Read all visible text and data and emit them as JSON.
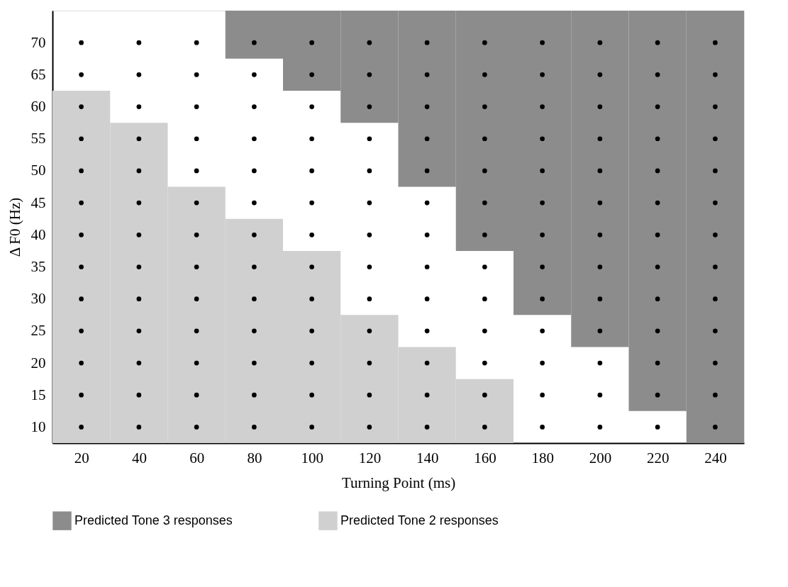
{
  "chart_data": {
    "type": "bar",
    "xlabel": "Turning Point (ms)",
    "ylabel": "Δ F0 (Hz)",
    "xlim": [
      10,
      250
    ],
    "ylim": [
      7.5,
      75
    ],
    "xticks": [
      20,
      40,
      60,
      80,
      100,
      120,
      140,
      160,
      180,
      200,
      220,
      240
    ],
    "yticks": [
      10,
      15,
      20,
      25,
      30,
      35,
      40,
      45,
      50,
      55,
      60,
      65,
      70
    ],
    "grid": false,
    "legend": "bottom",
    "series": [
      {
        "name": "Predicted Tone 3 responses",
        "color": "#8c8c8c",
        "x": [
          80,
          100,
          120,
          140,
          160,
          180,
          200,
          220,
          240
        ],
        "base": [
          67.5,
          62.5,
          57.5,
          47.5,
          37.5,
          27.5,
          22.5,
          12.5,
          7.5
        ],
        "values": [
          7.5,
          12.5,
          17.5,
          27.5,
          37.5,
          47.5,
          52.5,
          62.5,
          67.5
        ]
      },
      {
        "name": "Predicted Tone 2 responses",
        "color": "#d0d0d0",
        "x": [
          20,
          40,
          60,
          80,
          100,
          120,
          140,
          160
        ],
        "base": [
          7.5,
          7.5,
          7.5,
          7.5,
          7.5,
          7.5,
          7.5,
          7.5
        ],
        "values": [
          55,
          50,
          40,
          35,
          30,
          20,
          15,
          10
        ]
      },
      {
        "type": "scatter",
        "color": "#000000",
        "marker": "circle",
        "x": [
          20,
          20,
          20,
          20,
          20,
          20,
          20,
          20,
          20,
          20,
          20,
          20,
          20,
          40,
          40,
          40,
          40,
          40,
          40,
          40,
          40,
          40,
          40,
          40,
          40,
          40,
          60,
          60,
          60,
          60,
          60,
          60,
          60,
          60,
          60,
          60,
          60,
          60,
          60,
          80,
          80,
          80,
          80,
          80,
          80,
          80,
          80,
          80,
          80,
          80,
          80,
          80,
          100,
          100,
          100,
          100,
          100,
          100,
          100,
          100,
          100,
          100,
          100,
          100,
          100,
          120,
          120,
          120,
          120,
          120,
          120,
          120,
          120,
          120,
          120,
          120,
          120,
          120,
          140,
          140,
          140,
          140,
          140,
          140,
          140,
          140,
          140,
          140,
          140,
          140,
          140,
          160,
          160,
          160,
          160,
          160,
          160,
          160,
          160,
          160,
          160,
          160,
          160,
          160,
          180,
          180,
          180,
          180,
          180,
          180,
          180,
          180,
          180,
          180,
          180,
          180,
          180,
          200,
          200,
          200,
          200,
          200,
          200,
          200,
          200,
          200,
          200,
          200,
          200,
          200,
          220,
          220,
          220,
          220,
          220,
          220,
          220,
          220,
          220,
          220,
          220,
          220,
          220,
          240,
          240,
          240,
          240,
          240,
          240,
          240,
          240,
          240,
          240,
          240,
          240,
          240
        ],
        "values": [
          10,
          15,
          20,
          25,
          30,
          35,
          40,
          45,
          50,
          55,
          60,
          65,
          70,
          10,
          15,
          20,
          25,
          30,
          35,
          40,
          45,
          50,
          55,
          60,
          65,
          70,
          10,
          15,
          20,
          25,
          30,
          35,
          40,
          45,
          50,
          55,
          60,
          65,
          70,
          10,
          15,
          20,
          25,
          30,
          35,
          40,
          45,
          50,
          55,
          60,
          65,
          70,
          10,
          15,
          20,
          25,
          30,
          35,
          40,
          45,
          50,
          55,
          60,
          65,
          70,
          10,
          15,
          20,
          25,
          30,
          35,
          40,
          45,
          50,
          55,
          60,
          65,
          70,
          10,
          15,
          20,
          25,
          30,
          35,
          40,
          45,
          50,
          55,
          60,
          65,
          70,
          10,
          15,
          20,
          25,
          30,
          35,
          40,
          45,
          50,
          55,
          60,
          65,
          70,
          10,
          15,
          20,
          25,
          30,
          35,
          40,
          45,
          50,
          55,
          60,
          65,
          70,
          10,
          15,
          20,
          25,
          30,
          35,
          40,
          45,
          50,
          55,
          60,
          65,
          70,
          10,
          15,
          20,
          25,
          30,
          35,
          40,
          45,
          50,
          55,
          60,
          65,
          70,
          10,
          15,
          20,
          25,
          30,
          35,
          40,
          45,
          50,
          55,
          60,
          65,
          70
        ]
      }
    ]
  }
}
